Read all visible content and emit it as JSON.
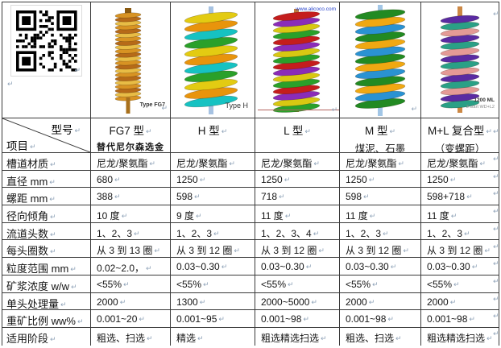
{
  "marks": {
    "paragraph": "↵",
    "row_end": "↵"
  },
  "table": {
    "header": {
      "diagonal": {
        "top_right": "型号",
        "bottom_left": "项目"
      },
      "models": [
        {
          "title": "FG7 型",
          "subtitle": "替代尼尔森选金"
        },
        {
          "title": "H 型",
          "subtitle": ""
        },
        {
          "title": "L 型",
          "subtitle": ""
        },
        {
          "title": "M 型",
          "subtitle": "煤泥、石墨"
        },
        {
          "title": "M+L 复合型",
          "subtitle": "（变螺距）"
        }
      ]
    },
    "rows": [
      {
        "label": "槽道材质",
        "values": [
          "尼龙/聚氨酯",
          "尼龙/聚氨酯",
          "尼龙/聚氨酯",
          "尼龙/聚氨酯",
          "尼龙/聚氨酯"
        ]
      },
      {
        "label": "直径 mm",
        "values": [
          "680",
          "1250",
          "1250",
          "1250",
          "1250"
        ]
      },
      {
        "label": "螺距 mm",
        "values": [
          "388",
          "598",
          "718",
          "598",
          "598+718"
        ]
      },
      {
        "label": "径向倾角",
        "values": [
          "10 度",
          "9 度",
          "11 度",
          "11 度",
          "11 度"
        ]
      },
      {
        "label": "流道头数",
        "values": [
          "1、2、3",
          "1、2、3",
          "1、2、3、4",
          "1、2、3",
          "1、2、3"
        ]
      },
      {
        "label": "每头圈数",
        "values": [
          "从 3 到 13 圈",
          "从 3 到 12 圈",
          "从 3 到 12 圈",
          "从 3 到 12 圈",
          "从 3 到 12 圈"
        ]
      },
      {
        "label": "粒度范围 mm",
        "values": [
          "0.02~2.0，",
          "0.03~0.30",
          "0.03~0.30",
          "0.03~0.30",
          "0.03~0.30"
        ]
      },
      {
        "label": "矿浆浓度 w/w",
        "values": [
          "<55%",
          "<55%",
          "<55%",
          "<55%",
          "<55%"
        ]
      },
      {
        "label_parts": [
          {
            "text": "单头处理量",
            "wavy": "green"
          }
        ],
        "values": [
          "2000",
          "1300",
          "2000~5000",
          "2000",
          "2000"
        ]
      },
      {
        "label_parts": [
          {
            "text": "重矿比例",
            "wavy": "green"
          },
          {
            "text": " ww%",
            "wavy": "red"
          }
        ],
        "values": [
          "0.001~20",
          "0.001~95",
          "0.001~98",
          "0.001~98",
          "0.001~98"
        ]
      },
      {
        "label": "适用阶段",
        "values": [
          "粗选、扫选",
          "精选",
          "粗选精选扫选",
          "粗选、扫选",
          "粗选精选扫选"
        ]
      }
    ]
  },
  "images": {
    "qr": {
      "name": "qr-code"
    },
    "captions": {
      "fg7": "Type FG7",
      "h": "Type H",
      "l_watermark": "www.alicoco.com",
      "ml_line1": "1200 ML",
      "ml_line2": "3 start WD+L2"
    },
    "spiral_palettes": {
      "fg7": [
        "#d89323",
        "#b66a18",
        "#e8bc45"
      ],
      "h": [
        "#e3cb12",
        "#e8940c",
        "#16c2c2",
        "#2aa02a"
      ],
      "l": [
        "#c41d1d",
        "#8a2cb8",
        "#d8c812",
        "#2aa02a"
      ],
      "m": [
        "#228a22",
        "#f0a812",
        "#2a92d2"
      ],
      "ml": [
        "#5a2ba2",
        "#2aa086",
        "#e49a96"
      ]
    }
  }
}
